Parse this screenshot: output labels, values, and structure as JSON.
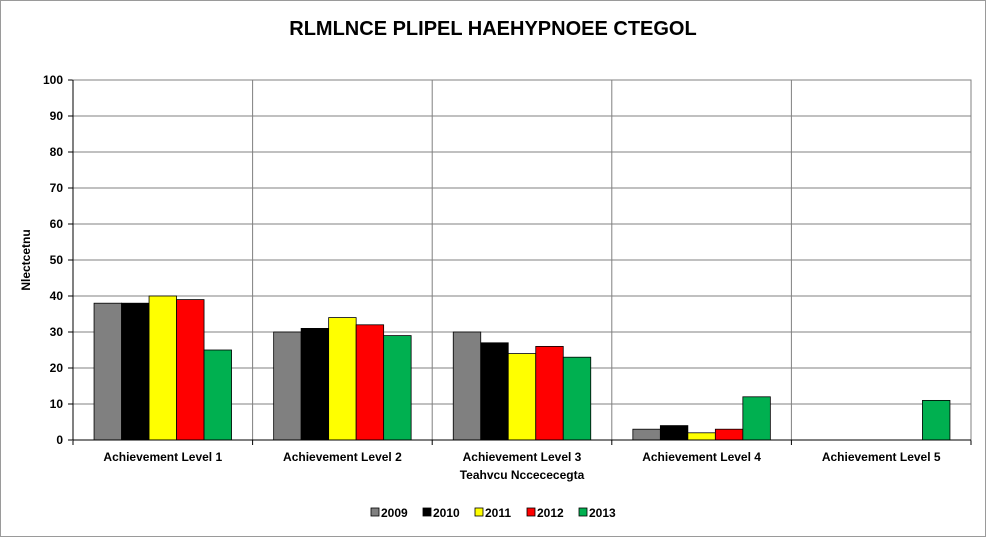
{
  "chart_data": {
    "type": "bar",
    "title": "RLMLNCE PLIPEL HAEHYPNOEE CTEGOL",
    "xlabel": "Teahvcu Nccececegta",
    "ylabel": "Nlectcetnu",
    "categories": [
      "Achievement Level 1",
      "Achievement Level 2",
      "Achievement Level 3",
      "Achievement Level 4",
      "Achievement Level 5"
    ],
    "ylim": [
      0,
      100
    ],
    "yticks": [
      "0",
      "10",
      "20",
      "30",
      "40",
      "50",
      "60",
      "70",
      "80",
      "90",
      "100"
    ],
    "grid": true,
    "legend_position": "bottom",
    "series": [
      {
        "name": "2009",
        "color": "#808080",
        "values": [
          38,
          30,
          30,
          3,
          0
        ]
      },
      {
        "name": "2010",
        "color": "#000000",
        "values": [
          38,
          31,
          27,
          4,
          0
        ]
      },
      {
        "name": "2011",
        "color": "#ffff00",
        "values": [
          40,
          34,
          24,
          2,
          0
        ]
      },
      {
        "name": "2012",
        "color": "#ff0000",
        "values": [
          39,
          32,
          26,
          3,
          0
        ]
      },
      {
        "name": "2013",
        "color": "#00b050",
        "values": [
          25,
          29,
          23,
          12,
          11
        ]
      }
    ]
  }
}
